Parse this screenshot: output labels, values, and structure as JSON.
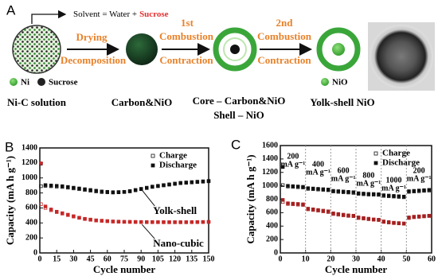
{
  "schematic": {
    "panel_label": "A",
    "solvent": "Solvent = Water +",
    "solvent_additive": "Sucrose",
    "step1": {
      "top": "Drying",
      "bottom": "Decomposition"
    },
    "step2": {
      "order": "1st",
      "top": "Combustion",
      "bottom": "Contraction"
    },
    "step3": {
      "order": "2nd",
      "top": "Combustion",
      "bottom": "Contraction"
    },
    "legend": [
      "Ni",
      "Sucrose",
      "NiO"
    ],
    "stages": [
      "Ni-C solution",
      "Carbon&NiO",
      "Core – Carbon&NiO",
      "Shell – NiO",
      "Yolk-shell NiO"
    ]
  },
  "chart_data": [
    {
      "type": "scatter",
      "panel_label": "B",
      "x_label": "Cycle number",
      "y_label": "Capacity (mA h g⁻¹)",
      "legend": [
        "Charge",
        "Discharge"
      ],
      "legend_position": "upper right",
      "x": [
        1,
        5,
        10,
        15,
        20,
        25,
        30,
        35,
        40,
        45,
        50,
        55,
        60,
        65,
        70,
        75,
        80,
        85,
        90,
        95,
        100,
        105,
        110,
        115,
        120,
        125,
        130,
        135,
        140,
        145,
        150
      ],
      "groups": [
        {
          "name": "Yolk-shell",
          "color": "#111111",
          "charge": [
            890,
            895,
            890,
            885,
            880,
            870,
            860,
            850,
            840,
            830,
            820,
            812,
            808,
            805,
            808,
            812,
            820,
            835,
            850,
            865,
            880,
            890,
            900,
            910,
            920,
            930,
            935,
            940,
            945,
            950,
            955
          ],
          "discharge": [
            1190,
            905,
            900,
            895,
            890,
            880,
            870,
            860,
            850,
            840,
            830,
            820,
            815,
            810,
            812,
            815,
            825,
            840,
            855,
            870,
            885,
            895,
            905,
            915,
            925,
            935,
            940,
            945,
            950,
            955,
            960
          ]
        },
        {
          "name": "Nano-cubic",
          "color": "#c62828",
          "charge": [
            650,
            600,
            570,
            545,
            525,
            505,
            485,
            468,
            452,
            442,
            432,
            428,
            423,
            418,
            416,
            414,
            413,
            412,
            411,
            410,
            410,
            410,
            409,
            409,
            409,
            409,
            409,
            410,
            411,
            412,
            413
          ],
          "discharge": [
            1195,
            620,
            580,
            550,
            530,
            510,
            490,
            470,
            455,
            445,
            435,
            430,
            425,
            420,
            418,
            415,
            415,
            414,
            413,
            412,
            412,
            411,
            411,
            410,
            410,
            410,
            410,
            411,
            412,
            413,
            415
          ]
        }
      ],
      "xlim": [
        0,
        150
      ],
      "xticks": [
        0,
        15,
        30,
        45,
        60,
        75,
        90,
        105,
        120,
        135,
        150
      ],
      "ylim": [
        0,
        1400
      ],
      "yticks": [
        0,
        200,
        400,
        600,
        800,
        1000,
        1200,
        1400
      ]
    },
    {
      "type": "scatter",
      "panel_label": "C",
      "x_label": "Cycle number",
      "y_label": "Capacity (mA h g⁻¹)",
      "legend": [
        "Charge",
        "Discharge"
      ],
      "legend_position": "upper right",
      "x": [
        1,
        3,
        5,
        7,
        9,
        11,
        13,
        15,
        17,
        19,
        21,
        23,
        25,
        27,
        29,
        31,
        33,
        35,
        37,
        39,
        41,
        43,
        45,
        47,
        49,
        51,
        53,
        55,
        57,
        59
      ],
      "groups": [
        {
          "color": "#111111",
          "charge": [
            1010,
            990,
            985,
            980,
            975,
            955,
            950,
            945,
            940,
            935,
            915,
            910,
            905,
            900,
            895,
            880,
            875,
            870,
            868,
            865,
            850,
            845,
            840,
            835,
            830,
            910,
            915,
            920,
            925,
            930
          ],
          "discharge": [
            1280,
            1000,
            995,
            990,
            985,
            965,
            960,
            955,
            950,
            945,
            925,
            920,
            915,
            910,
            905,
            890,
            885,
            880,
            878,
            875,
            860,
            855,
            850,
            845,
            840,
            920,
            925,
            930,
            935,
            940
          ]
        },
        {
          "color": "#a52020",
          "charge": [
            760,
            730,
            725,
            720,
            715,
            650,
            640,
            630,
            620,
            610,
            580,
            570,
            560,
            552,
            548,
            520,
            512,
            503,
            495,
            490,
            462,
            453,
            445,
            440,
            435,
            520,
            532,
            538,
            544,
            550
          ],
          "discharge": [
            790,
            740,
            735,
            730,
            725,
            660,
            650,
            640,
            630,
            620,
            590,
            580,
            570,
            560,
            555,
            530,
            520,
            510,
            500,
            495,
            470,
            460,
            450,
            445,
            440,
            530,
            540,
            545,
            550,
            555
          ]
        }
      ],
      "dividers": [
        10,
        20,
        30,
        40,
        50
      ],
      "rate_labels": [
        {
          "rate": "200",
          "unit": "mA g⁻¹"
        },
        {
          "rate": "400",
          "unit": "mA g⁻¹"
        },
        {
          "rate": "600",
          "unit": "mA g⁻¹"
        },
        {
          "rate": "800",
          "unit": "mA g⁻¹"
        },
        {
          "rate": "1000",
          "unit": "mA g⁻¹"
        },
        {
          "rate": "200",
          "unit": "mA g⁻¹"
        }
      ],
      "xlim": [
        0,
        60
      ],
      "xticks": [
        0,
        10,
        20,
        30,
        40,
        50,
        60
      ],
      "ylim": [
        0,
        1600
      ],
      "yticks": [
        0,
        200,
        400,
        600,
        800,
        1000,
        1200,
        1400,
        1600
      ]
    }
  ]
}
